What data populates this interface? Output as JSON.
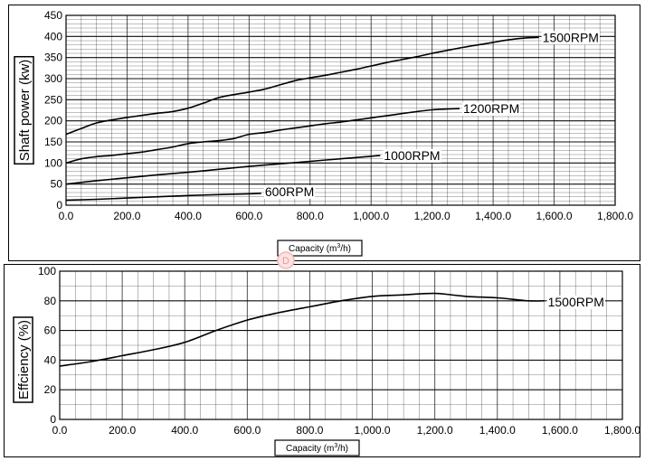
{
  "chart_data": [
    {
      "type": "line",
      "title": "",
      "xlabel": "Capacity (m3/h)",
      "ylabel": "Shaft power (kw)",
      "xlim": [
        0,
        1800
      ],
      "ylim": [
        0,
        450
      ],
      "x_ticks": [
        "0.0",
        "200.0",
        "400.0",
        "600.0",
        "800.0",
        "1,000.0",
        "1,200.0",
        "1,400.0",
        "1,600.0",
        "1,800.0"
      ],
      "y_ticks": [
        "0",
        "50",
        "100",
        "150",
        "200",
        "250",
        "300",
        "350",
        "400",
        "450"
      ],
      "grid": true,
      "series": [
        {
          "name": "1500RPM",
          "x": [
            0,
            50,
            100,
            150,
            200,
            250,
            300,
            350,
            400,
            450,
            500,
            550,
            600,
            650,
            700,
            750,
            800,
            850,
            900,
            950,
            1000,
            1050,
            1100,
            1150,
            1200,
            1250,
            1300,
            1350,
            1400,
            1450,
            1500,
            1550
          ],
          "y": [
            168,
            182,
            195,
            202,
            208,
            213,
            218,
            222,
            230,
            242,
            255,
            262,
            268,
            275,
            285,
            295,
            302,
            308,
            315,
            322,
            330,
            338,
            345,
            352,
            360,
            367,
            374,
            380,
            386,
            392,
            396,
            398
          ]
        },
        {
          "name": "1200RPM",
          "x": [
            0,
            50,
            100,
            150,
            200,
            250,
            300,
            350,
            400,
            450,
            500,
            550,
            600,
            650,
            700,
            750,
            800,
            850,
            900,
            950,
            1000,
            1050,
            1100,
            1150,
            1200,
            1250,
            1290
          ],
          "y": [
            100,
            110,
            115,
            118,
            122,
            126,
            132,
            138,
            146,
            150,
            153,
            158,
            168,
            172,
            178,
            183,
            188,
            193,
            197,
            202,
            207,
            212,
            217,
            222,
            226,
            228,
            229
          ]
        },
        {
          "name": "1000RPM",
          "x": [
            0,
            100,
            200,
            300,
            400,
            500,
            600,
            700,
            800,
            900,
            1000,
            1030
          ],
          "y": [
            50,
            58,
            65,
            72,
            78,
            85,
            92,
            98,
            104,
            110,
            116,
            118
          ]
        },
        {
          "name": "600RPM",
          "x": [
            0,
            100,
            200,
            300,
            400,
            500,
            600,
            640
          ],
          "y": [
            12,
            14,
            17,
            20,
            23,
            25,
            27,
            28
          ]
        }
      ]
    },
    {
      "type": "line",
      "title": "",
      "xlabel": "Capacity (m3/h)",
      "ylabel": "Effciency (%)",
      "xlim": [
        0,
        1800
      ],
      "ylim": [
        0,
        100
      ],
      "x_ticks": [
        "0.0",
        "200.0",
        "400.0",
        "600.0",
        "800.0",
        "1,000.0",
        "1,200.0",
        "1,400.0",
        "1,600.0",
        "1,800.0"
      ],
      "y_ticks": [
        "0",
        "20",
        "40",
        "60",
        "80",
        "100"
      ],
      "grid": true,
      "series": [
        {
          "name": "1500RPM",
          "x": [
            0,
            100,
            200,
            300,
            400,
            500,
            600,
            700,
            800,
            900,
            1000,
            1100,
            1200,
            1300,
            1400,
            1500,
            1550
          ],
          "y": [
            36,
            39,
            43,
            47,
            52,
            60,
            67,
            72,
            76,
            80,
            83,
            84,
            85,
            83,
            82,
            80,
            80
          ]
        }
      ]
    }
  ],
  "capacity_label": {
    "text": "Capacity (m",
    "sup": "3",
    "tail": "/h)"
  },
  "watermark_glyph": "D",
  "colors": {
    "line": "#000000",
    "grid": "#000000",
    "frame": "#000000",
    "watermark": "#f3b6b6"
  }
}
